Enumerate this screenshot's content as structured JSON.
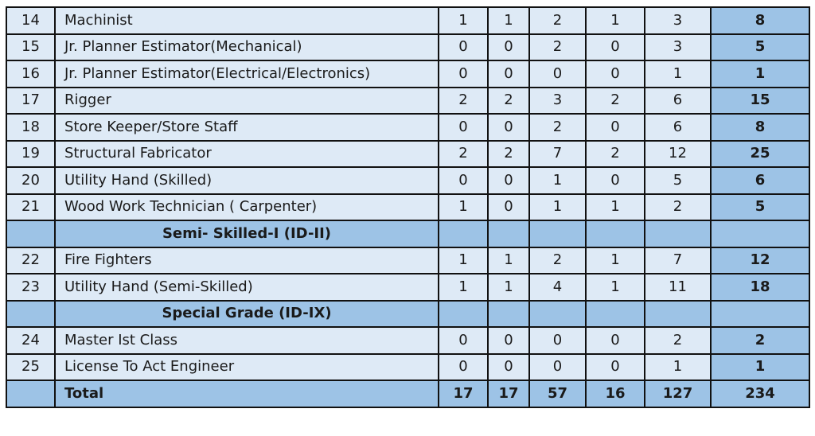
{
  "table": {
    "rows": [
      {
        "type": "data",
        "sno": "14",
        "label": "Machinist",
        "values": [
          "1",
          "1",
          "2",
          "1",
          "3"
        ],
        "total": "8"
      },
      {
        "type": "data",
        "sno": "15",
        "label": "Jr. Planner Estimator(Mechanical)",
        "values": [
          "0",
          "0",
          "2",
          "0",
          "3"
        ],
        "total": "5"
      },
      {
        "type": "data",
        "sno": "16",
        "label": "Jr. Planner Estimator(Electrical/Electronics)",
        "values": [
          "0",
          "0",
          "0",
          "0",
          "1"
        ],
        "total": "1"
      },
      {
        "type": "data",
        "sno": "17",
        "label": "Rigger",
        "values": [
          "2",
          "2",
          "3",
          "2",
          "6"
        ],
        "total": "15"
      },
      {
        "type": "data",
        "sno": "18",
        "label": "Store Keeper/Store Staff",
        "values": [
          "0",
          "0",
          "2",
          "0",
          "6"
        ],
        "total": "8"
      },
      {
        "type": "data",
        "sno": "19",
        "label": "Structural Fabricator",
        "values": [
          "2",
          "2",
          "7",
          "2",
          "12"
        ],
        "total": "25"
      },
      {
        "type": "data",
        "sno": "20",
        "label": "Utility Hand (Skilled)",
        "values": [
          "0",
          "0",
          "1",
          "0",
          "5"
        ],
        "total": "6"
      },
      {
        "type": "data",
        "sno": "21",
        "label": "Wood Work Technician ( Carpenter)",
        "values": [
          "1",
          "0",
          "1",
          "1",
          "2"
        ],
        "total": "5"
      },
      {
        "type": "section",
        "label": "Semi- Skilled-I (ID-II)"
      },
      {
        "type": "data",
        "sno": "22",
        "label": "Fire Fighters",
        "values": [
          "1",
          "1",
          "2",
          "1",
          "7"
        ],
        "total": "12"
      },
      {
        "type": "data",
        "sno": "23",
        "label": "Utility Hand (Semi-Skilled)",
        "values": [
          "1",
          "1",
          "4",
          "1",
          "11"
        ],
        "total": "18"
      },
      {
        "type": "section",
        "label": "Special Grade (ID-IX)"
      },
      {
        "type": "data",
        "sno": "24",
        "label": "Master Ist Class",
        "values": [
          "0",
          "0",
          "0",
          "0",
          "2"
        ],
        "total": "2"
      },
      {
        "type": "data",
        "sno": "25",
        "label": "License To Act Engineer",
        "values": [
          "0",
          "0",
          "0",
          "0",
          "1"
        ],
        "total": "1"
      }
    ],
    "grand_total": {
      "label": "Total",
      "values": [
        "17",
        "17",
        "57",
        "16",
        "127"
      ],
      "total": "234"
    }
  },
  "colors": {
    "light_row": "#deeaf6",
    "highlight": "#9dc3e6",
    "border": "#111111",
    "text": "#1a1a1a"
  }
}
